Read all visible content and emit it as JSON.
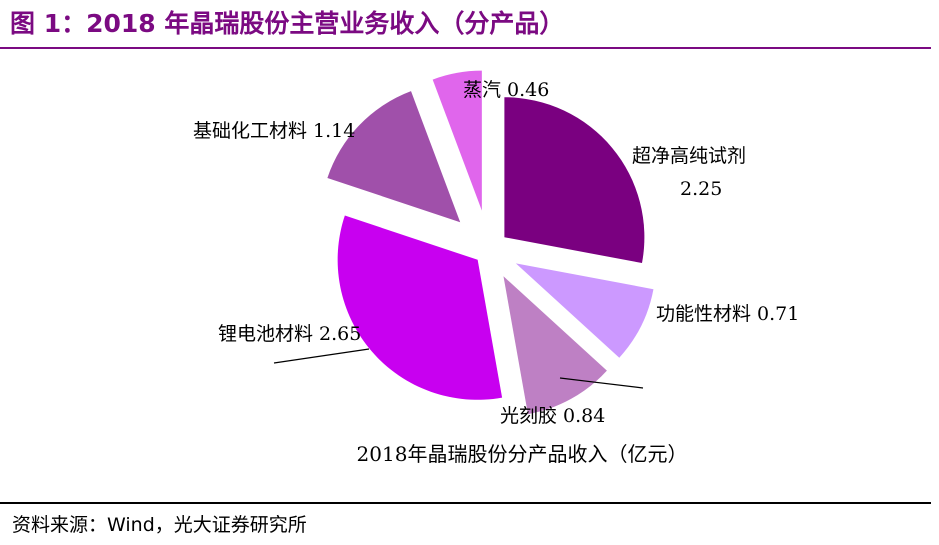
{
  "figure_title": "图 1：2018 年晶瑞股份主营业务收入（分产品）",
  "source_label": "资料来源：Wind，光大证券研究所",
  "chart_data": {
    "type": "pie",
    "title": "2018年晶瑞股份分产品收入（亿元）",
    "slices": [
      {
        "label": "超净高纯试剂",
        "value": 2.25,
        "color": "#7a0080"
      },
      {
        "label": "功能性材料",
        "value": 0.71,
        "color": "#cc99ff"
      },
      {
        "label": "光刻胶",
        "value": 0.84,
        "color": "#be80c4"
      },
      {
        "label": "锂电池材料",
        "value": 2.65,
        "color": "#c800f0"
      },
      {
        "label": "基础化工材料",
        "value": 1.14,
        "color": "#a050aa"
      },
      {
        "label": "蒸汽",
        "value": 0.46,
        "color": "#e066ec"
      }
    ],
    "unit": "亿元",
    "legend": "none"
  }
}
